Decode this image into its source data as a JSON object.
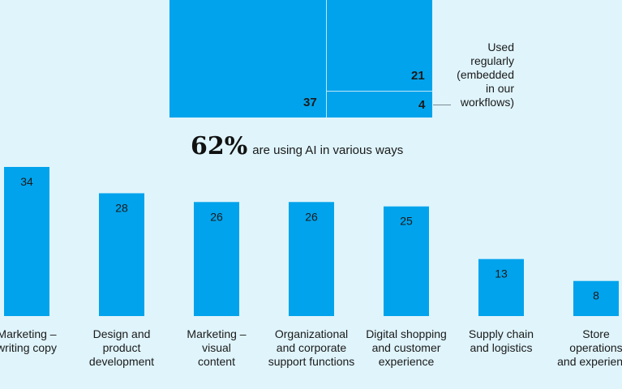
{
  "top_chart": {
    "used_regularly_label": [
      "Used",
      "regularly",
      "(embedded",
      "in our",
      "workflows)"
    ],
    "values": {
      "left": "37",
      "right_upper": "21",
      "right_lower": "4"
    },
    "headline_percent": "62%",
    "headline_text": "are using AI in various ways"
  },
  "chart_data": {
    "type": "bar",
    "title": "",
    "xlabel": "",
    "ylabel": "",
    "categories": [
      [
        "Marketing –",
        "writing copy"
      ],
      [
        "Design and",
        "product",
        "development"
      ],
      [
        "Marketing –",
        "visual",
        "content"
      ],
      [
        "Organizational",
        "and corporate",
        "support functions"
      ],
      [
        "Digital shopping",
        "and customer",
        "experience"
      ],
      [
        "Supply chain",
        "and logistics"
      ],
      [
        "Store",
        "operations",
        "and experience"
      ]
    ],
    "values": [
      34,
      28,
      26,
      26,
      25,
      13,
      8
    ],
    "ylim": [
      0,
      34
    ],
    "grid": false,
    "colors": {
      "bar": "#00a3ec",
      "background": "#dff4fb"
    }
  }
}
